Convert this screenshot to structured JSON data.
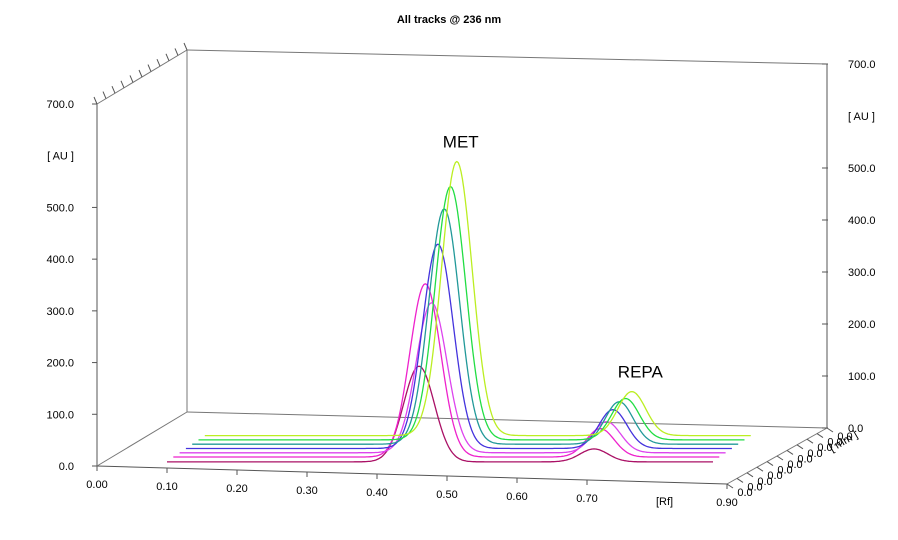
{
  "chart_data": {
    "type": "line",
    "title": "All tracks @ 236 nm",
    "xlabel": "[Rf]",
    "ylabel": "[ AU ]",
    "ylabel_right": "[ AU ]",
    "zlabel": "[ mm ]",
    "xlim": [
      0.0,
      0.9
    ],
    "ylim": [
      0.0,
      700.0
    ],
    "x_ticks": [
      "0.00",
      "0.10",
      "0.20",
      "0.30",
      "0.40",
      "0.50",
      "0.60",
      "0.70",
      "0.90"
    ],
    "y_ticks_left": [
      "0.0",
      "100.0",
      "200.0",
      "300.0",
      "400.0",
      "500.0",
      "700.0"
    ],
    "y_ticks_right": [
      "0.0",
      "100.0",
      "200.0",
      "300.0",
      "400.0",
      "500.0",
      "700.0"
    ],
    "grid": false,
    "annotations": [
      {
        "text": "MET",
        "x": 0.46,
        "series": 6
      },
      {
        "text": "REPA",
        "x": 0.71,
        "series": 6
      }
    ],
    "peak_components": [
      {
        "name": "MET",
        "rf": 0.46,
        "width": 0.022
      },
      {
        "name": "REPA",
        "rf": 0.71,
        "width": 0.02
      }
    ],
    "series": [
      {
        "color": "#aa1166",
        "baseline": 8,
        "met_height": 185,
        "repa_height": 25
      },
      {
        "color": "#ee22cc",
        "baseline": 10,
        "met_height": 335,
        "repa_height": 55
      },
      {
        "color": "#dd44ee",
        "baseline": 11,
        "met_height": 290,
        "repa_height": 60
      },
      {
        "color": "#4433dd",
        "baseline": 12,
        "met_height": 395,
        "repa_height": 75
      },
      {
        "color": "#229999",
        "baseline": 13,
        "met_height": 455,
        "repa_height": 82
      },
      {
        "color": "#22dd44",
        "baseline": 14,
        "met_height": 490,
        "repa_height": 80
      },
      {
        "color": "#bbee22",
        "baseline": 15,
        "met_height": 530,
        "repa_height": 85
      }
    ]
  }
}
